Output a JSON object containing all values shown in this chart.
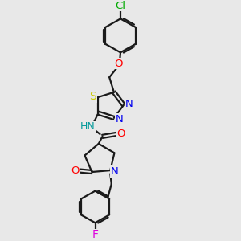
{
  "background_color": "#e8e8e8",
  "line_color": "#1a1a1a",
  "line_width": 1.6,
  "atom_colors": {
    "Cl": "#00aa00",
    "O": "#ff0000",
    "S": "#cccc00",
    "N": "#0000ee",
    "NH": "#009999",
    "F": "#dd00dd"
  },
  "fontsize": 9.5
}
